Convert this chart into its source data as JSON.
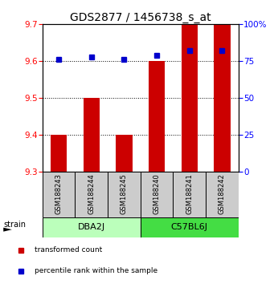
{
  "title": "GDS2877 / 1456738_s_at",
  "samples": [
    "GSM188243",
    "GSM188244",
    "GSM188245",
    "GSM188240",
    "GSM188241",
    "GSM188242"
  ],
  "transformed_counts": [
    9.4,
    9.5,
    9.4,
    9.6,
    9.7,
    9.7
  ],
  "percentile_ranks": [
    76,
    78,
    76,
    79,
    82,
    82
  ],
  "ylim_left": [
    9.3,
    9.7
  ],
  "ylim_right": [
    0,
    100
  ],
  "yticks_left": [
    9.3,
    9.4,
    9.5,
    9.6,
    9.7
  ],
  "yticks_right": [
    0,
    25,
    50,
    75,
    100
  ],
  "group_dba_color": "#BBFFBB",
  "group_c57_color": "#44DD44",
  "bar_color": "#CC0000",
  "dot_color": "#0000CC",
  "bar_width": 0.5,
  "bar_bottom": 9.3,
  "sample_box_color": "#CCCCCC",
  "legend_red_label": "transformed count",
  "legend_blue_label": "percentile rank within the sample",
  "strain_label": "strain",
  "title_fontsize": 10,
  "tick_fontsize": 7.5
}
